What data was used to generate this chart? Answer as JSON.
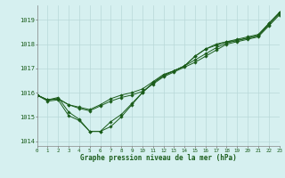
{
  "title": "Graphe pression niveau de la mer (hPa)",
  "background_color": "#d6f0f0",
  "grid_color": "#b8d8d8",
  "line_color": "#1a5c1a",
  "ylim": [
    1013.8,
    1019.6
  ],
  "xlim": [
    0,
    23
  ],
  "yticks": [
    1014,
    1015,
    1016,
    1017,
    1018,
    1019
  ],
  "xticks": [
    0,
    1,
    2,
    3,
    4,
    5,
    6,
    7,
    8,
    9,
    10,
    11,
    12,
    13,
    14,
    15,
    16,
    17,
    18,
    19,
    20,
    21,
    22,
    23
  ],
  "series": [
    [
      1015.9,
      1015.7,
      1015.8,
      1015.2,
      1014.9,
      1014.4,
      1014.4,
      1014.6,
      1015.0,
      1015.5,
      1016.0,
      1016.4,
      1016.7,
      1016.9,
      1017.1,
      1017.5,
      1017.8,
      1018.0,
      1018.1,
      1018.2,
      1018.3,
      1018.4,
      1018.85,
      1019.3
    ],
    [
      1015.9,
      1015.7,
      1015.75,
      1015.5,
      1015.4,
      1015.3,
      1015.5,
      1015.75,
      1015.9,
      1016.0,
      1016.15,
      1016.45,
      1016.75,
      1016.9,
      1017.1,
      1017.35,
      1017.6,
      1017.85,
      1018.05,
      1018.15,
      1018.25,
      1018.35,
      1018.8,
      1019.25
    ],
    [
      1015.9,
      1015.7,
      1015.75,
      1015.5,
      1015.35,
      1015.25,
      1015.45,
      1015.65,
      1015.8,
      1015.9,
      1016.05,
      1016.35,
      1016.65,
      1016.85,
      1017.05,
      1017.25,
      1017.5,
      1017.75,
      1018.0,
      1018.1,
      1018.2,
      1018.3,
      1018.75,
      1019.2
    ],
    [
      1015.9,
      1015.65,
      1015.7,
      1015.05,
      1014.85,
      1014.4,
      1014.4,
      1014.8,
      1015.1,
      1015.55,
      1016.0,
      1016.4,
      1016.7,
      1016.9,
      1017.1,
      1017.5,
      1017.8,
      1017.95,
      1018.1,
      1018.15,
      1018.25,
      1018.35,
      1018.85,
      1019.3
    ]
  ]
}
